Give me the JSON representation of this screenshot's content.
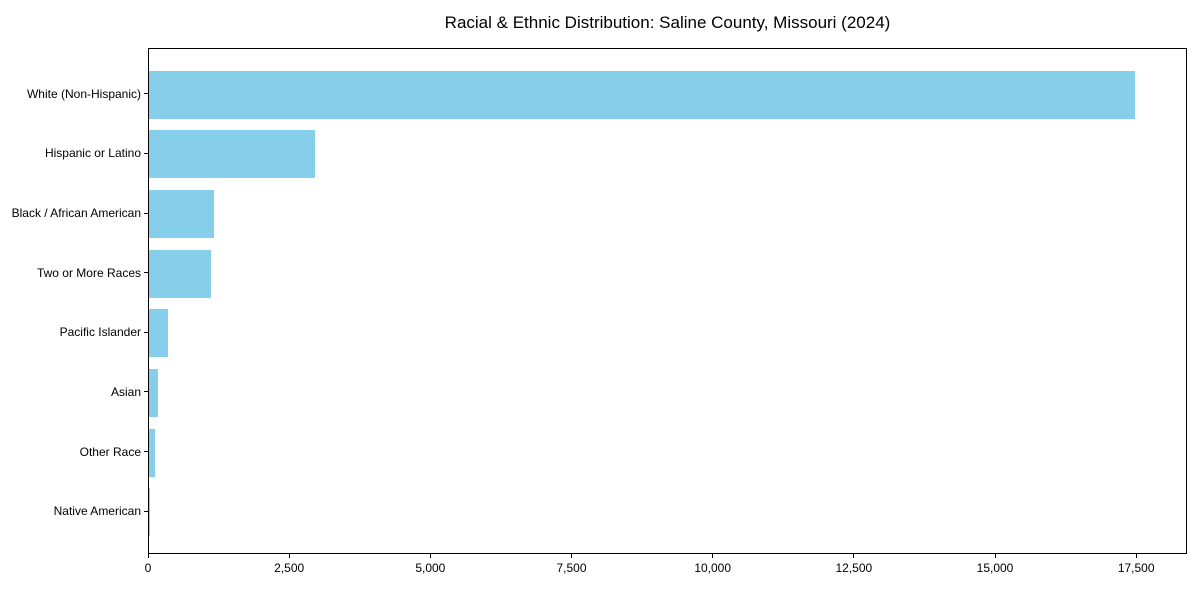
{
  "chart_data": {
    "type": "bar",
    "orientation": "horizontal",
    "title": "Racial & Ethnic Distribution: Saline County, Missouri (2024)",
    "categories": [
      "White (Non-Hispanic)",
      "Hispanic or Latino",
      "Black / African American",
      "Two or More Races",
      "Pacific Islander",
      "Asian",
      "Other Race",
      "Native American"
    ],
    "values": [
      17500,
      2950,
      1150,
      1100,
      330,
      160,
      100,
      20
    ],
    "xlabel": "",
    "ylabel": "",
    "xlim": [
      0,
      18400
    ],
    "x_ticks": [
      0,
      2500,
      5000,
      7500,
      10000,
      12500,
      15000,
      17500
    ],
    "x_tick_labels": [
      "0",
      "2,500",
      "5,000",
      "7,500",
      "10,000",
      "12,500",
      "15,000",
      "17,500"
    ],
    "grid": false,
    "legend": null,
    "bar_color": "#87CEEB",
    "axis_color": "#000000",
    "text_color": "#000000",
    "background_color": "#ffffff"
  }
}
